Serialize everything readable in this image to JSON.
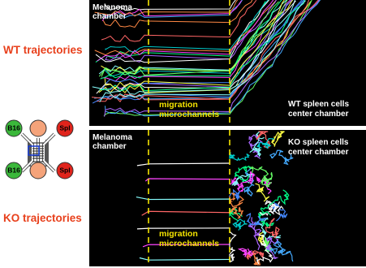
{
  "labels": {
    "wt": "WT trajectories",
    "ko": "KO trajectories"
  },
  "device": {
    "top_left": "B16",
    "top_right": "Spl",
    "bottom_left": "B16",
    "bottom_right": "Spl"
  },
  "panels": [
    {
      "left": [
        "Melanoma",
        "chamber"
      ],
      "middle": [
        "migration",
        "microchannels"
      ],
      "right": [
        "WT spleen cells",
        "center chamber"
      ]
    },
    {
      "left": [
        "Melanoma",
        "chamber"
      ],
      "middle": [
        "migration",
        "microchannels"
      ],
      "right": [
        "KO spleen cells",
        "center chamber"
      ]
    }
  ]
}
